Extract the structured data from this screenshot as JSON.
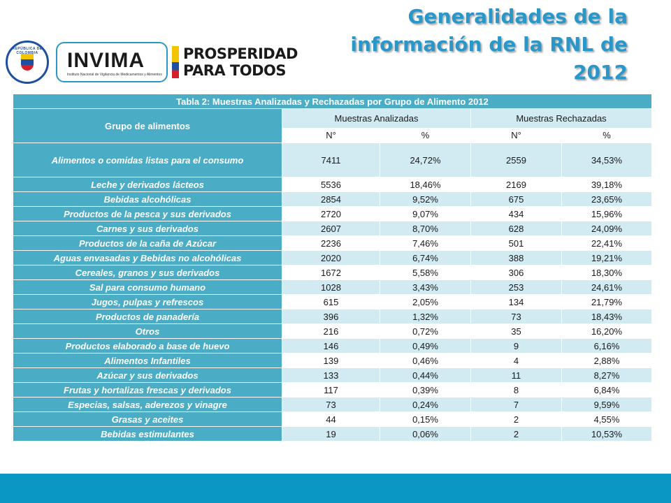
{
  "title": {
    "line1": "Generalidades de la",
    "line2": "información de la RNL de",
    "line3": "2012"
  },
  "logos": {
    "seal_text": "REPÚBLICA DE COLOMBIA",
    "invima_word": "INVIMA",
    "invima_sub": "Instituto Nacional de Vigilancia de Medicamentos y Alimentos",
    "prosperidad_line1": "PROSPERIDAD",
    "prosperidad_line2": "PARA TODOS"
  },
  "table": {
    "caption": "Tabla 2: Muestras Analizadas y Rechazadas por Grupo de Alimento 2012",
    "group_header": "Grupo de alimentos",
    "analyzed_header": "Muestras Analizadas",
    "rejected_header": "Muestras Rechazadas",
    "sub_headers": [
      "N°",
      "%",
      "N°",
      "%"
    ],
    "rows": [
      {
        "name": "Alimentos o comidas listas para el consumo",
        "n1": "7411",
        "p1": "24,72%",
        "n2": "2559",
        "p2": "34,53%"
      },
      {
        "name": "Leche y derivados lácteos",
        "n1": "5536",
        "p1": "18,46%",
        "n2": "2169",
        "p2": "39,18%"
      },
      {
        "name": "Bebidas alcohólicas",
        "n1": "2854",
        "p1": "9,52%",
        "n2": "675",
        "p2": "23,65%"
      },
      {
        "name": "Productos de la pesca y sus derivados",
        "n1": "2720",
        "p1": "9,07%",
        "n2": "434",
        "p2": "15,96%"
      },
      {
        "name": "Carnes y sus derivados",
        "n1": "2607",
        "p1": "8,70%",
        "n2": "628",
        "p2": "24,09%"
      },
      {
        "name": "Productos de la caña de Azúcar",
        "n1": "2236",
        "p1": "7,46%",
        "n2": "501",
        "p2": "22,41%"
      },
      {
        "name": "Aguas envasadas y Bebidas no alcohólicas",
        "n1": "2020",
        "p1": "6,74%",
        "n2": "388",
        "p2": "19,21%"
      },
      {
        "name": "Cereales, granos y sus derivados",
        "n1": "1672",
        "p1": "5,58%",
        "n2": "306",
        "p2": "18,30%"
      },
      {
        "name": "Sal para consumo humano",
        "n1": "1028",
        "p1": "3,43%",
        "n2": "253",
        "p2": "24,61%"
      },
      {
        "name": "Jugos, pulpas y refrescos",
        "n1": "615",
        "p1": "2,05%",
        "n2": "134",
        "p2": "21,79%"
      },
      {
        "name": "Productos de panadería",
        "n1": "396",
        "p1": "1,32%",
        "n2": "73",
        "p2": "18,43%"
      },
      {
        "name": "Otros",
        "n1": "216",
        "p1": "0,72%",
        "n2": "35",
        "p2": "16,20%"
      },
      {
        "name": "Productos elaborado a base de huevo",
        "n1": "146",
        "p1": "0,49%",
        "n2": "9",
        "p2": "6,16%"
      },
      {
        "name": "Alimentos Infantiles",
        "n1": "139",
        "p1": "0,46%",
        "n2": "4",
        "p2": "2,88%"
      },
      {
        "name": "Azúcar y sus derivados",
        "n1": "133",
        "p1": "0,44%",
        "n2": "11",
        "p2": "8,27%"
      },
      {
        "name": "Frutas y hortalizas frescas y derivados",
        "n1": "117",
        "p1": "0,39%",
        "n2": "8",
        "p2": "6,84%"
      },
      {
        "name": "Especias, salsas, aderezos y vinagre",
        "n1": "73",
        "p1": "0,24%",
        "n2": "7",
        "p2": "9,59%"
      },
      {
        "name": "Grasas y aceites",
        "n1": "44",
        "p1": "0,15%",
        "n2": "2",
        "p2": "4,55%"
      },
      {
        "name": "Bebidas estimulantes",
        "n1": "19",
        "p1": "0,06%",
        "n2": "2",
        "p2": "10,53%"
      }
    ]
  },
  "colors": {
    "header": "#4bacc6",
    "band": "#d2eaf1",
    "title": "#2b97c8",
    "footer": "#0a97c4"
  }
}
